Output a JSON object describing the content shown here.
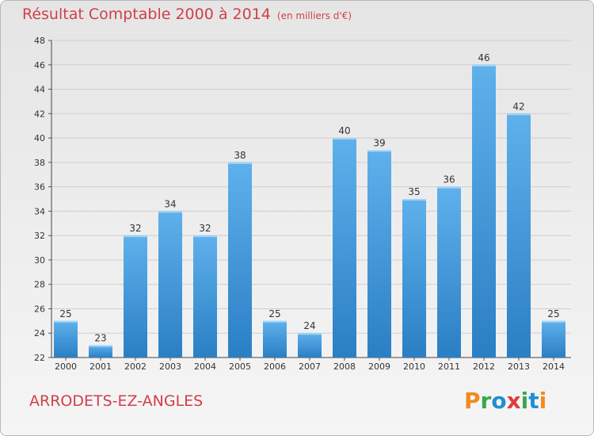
{
  "header": {
    "title": "Résultat Comptable 2000 à 2014",
    "subtitle": "(en milliers d'€)"
  },
  "commune_name": "ARRODETS-EZ-ANGLES",
  "brand": {
    "text": "Proxiti",
    "letters": [
      {
        "ch": "P",
        "color": "#f28a1e"
      },
      {
        "ch": "r",
        "color": "#39a84a"
      },
      {
        "ch": "o",
        "color": "#1f8fd6"
      },
      {
        "ch": "x",
        "color": "#e23b3b"
      },
      {
        "ch": "i",
        "color": "#39a84a"
      },
      {
        "ch": "t",
        "color": "#1f8fd6"
      },
      {
        "ch": "i",
        "color": "#f28a1e"
      }
    ]
  },
  "colors": {
    "bar_top": "#5fb1ec",
    "bar_bottom": "#2a7fc4",
    "title": "#d1404a",
    "grid": "#cfcfcf"
  },
  "chart_data": {
    "type": "bar",
    "title": "Résultat Comptable 2000 à 2014",
    "subtitle": "(en milliers d'€)",
    "categories": [
      "2000",
      "2001",
      "2002",
      "2003",
      "2004",
      "2005",
      "2006",
      "2007",
      "2008",
      "2009",
      "2010",
      "2011",
      "2012",
      "2013",
      "2014"
    ],
    "values": [
      25,
      23,
      32,
      34,
      32,
      38,
      25,
      24,
      40,
      39,
      35,
      36,
      46,
      42,
      25
    ],
    "ylim": [
      22,
      48
    ],
    "yticks": [
      22,
      24,
      26,
      28,
      30,
      32,
      34,
      36,
      38,
      40,
      42,
      44,
      46,
      48
    ],
    "grid": true,
    "xlabel": "",
    "ylabel": ""
  }
}
